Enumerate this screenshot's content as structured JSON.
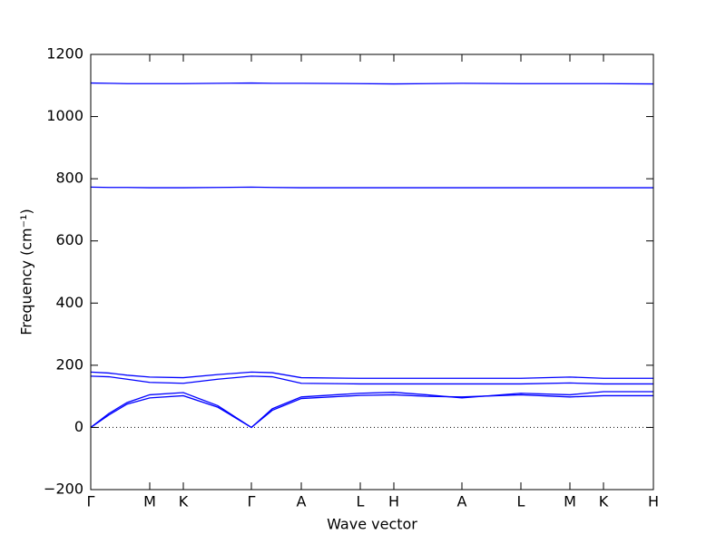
{
  "chart_data": {
    "type": "line",
    "xlabel": "Wave vector",
    "ylabel": "Frequency (cm⁻¹)",
    "x": [
      0,
      20,
      40,
      65,
      102,
      140,
      177,
      200,
      232,
      297,
      334,
      370,
      409,
      474,
      528,
      565,
      620
    ],
    "series": [
      {
        "color": "#0000ff",
        "values": [
          1108,
          1107,
          1106,
          1106,
          1106,
          1107,
          1108,
          1107,
          1107,
          1106,
          1105,
          1106,
          1107,
          1106,
          1106,
          1106,
          1105
        ]
      },
      {
        "color": "#0000ff",
        "values": [
          773,
          772,
          772,
          771,
          771,
          772,
          773,
          772,
          771,
          771,
          771,
          771,
          771,
          771,
          771,
          771,
          771
        ]
      },
      {
        "color": "#0000ff",
        "values": [
          178,
          175,
          168,
          162,
          160,
          170,
          178,
          176,
          160,
          158,
          158,
          158,
          158,
          158,
          162,
          158,
          158
        ]
      },
      {
        "color": "#0000ff",
        "values": [
          165,
          163,
          155,
          145,
          142,
          155,
          165,
          163,
          142,
          140,
          140,
          140,
          140,
          140,
          143,
          140,
          140
        ]
      },
      {
        "color": "#0000ff",
        "values": [
          0,
          45,
          80,
          105,
          112,
          70,
          0,
          60,
          98,
          110,
          113,
          105,
          95,
          110,
          105,
          115,
          115
        ]
      },
      {
        "color": "#0000ff",
        "values": [
          0,
          40,
          75,
          95,
          102,
          65,
          0,
          55,
          93,
          103,
          105,
          100,
          98,
          105,
          98,
          102,
          102
        ]
      }
    ],
    "hline": 0,
    "xlim": [
      0,
      620
    ],
    "xticks": [
      {
        "value": 0,
        "label": "Γ"
      },
      {
        "value": 65,
        "label": "M"
      },
      {
        "value": 102,
        "label": "K"
      },
      {
        "value": 177,
        "label": "Γ"
      },
      {
        "value": 232,
        "label": "A"
      },
      {
        "value": 297,
        "label": "L"
      },
      {
        "value": 334,
        "label": "H"
      },
      {
        "value": 409,
        "label": "A"
      },
      {
        "value": 474,
        "label": "L"
      },
      {
        "value": 528,
        "label": "M"
      },
      {
        "value": 565,
        "label": "K"
      },
      {
        "value": 620,
        "label": "H"
      }
    ],
    "ylim": [
      -200,
      1200
    ],
    "yticks": [
      {
        "value": -200,
        "label": "−200"
      },
      0,
      200,
      400,
      600,
      800,
      1000,
      1200
    ]
  }
}
